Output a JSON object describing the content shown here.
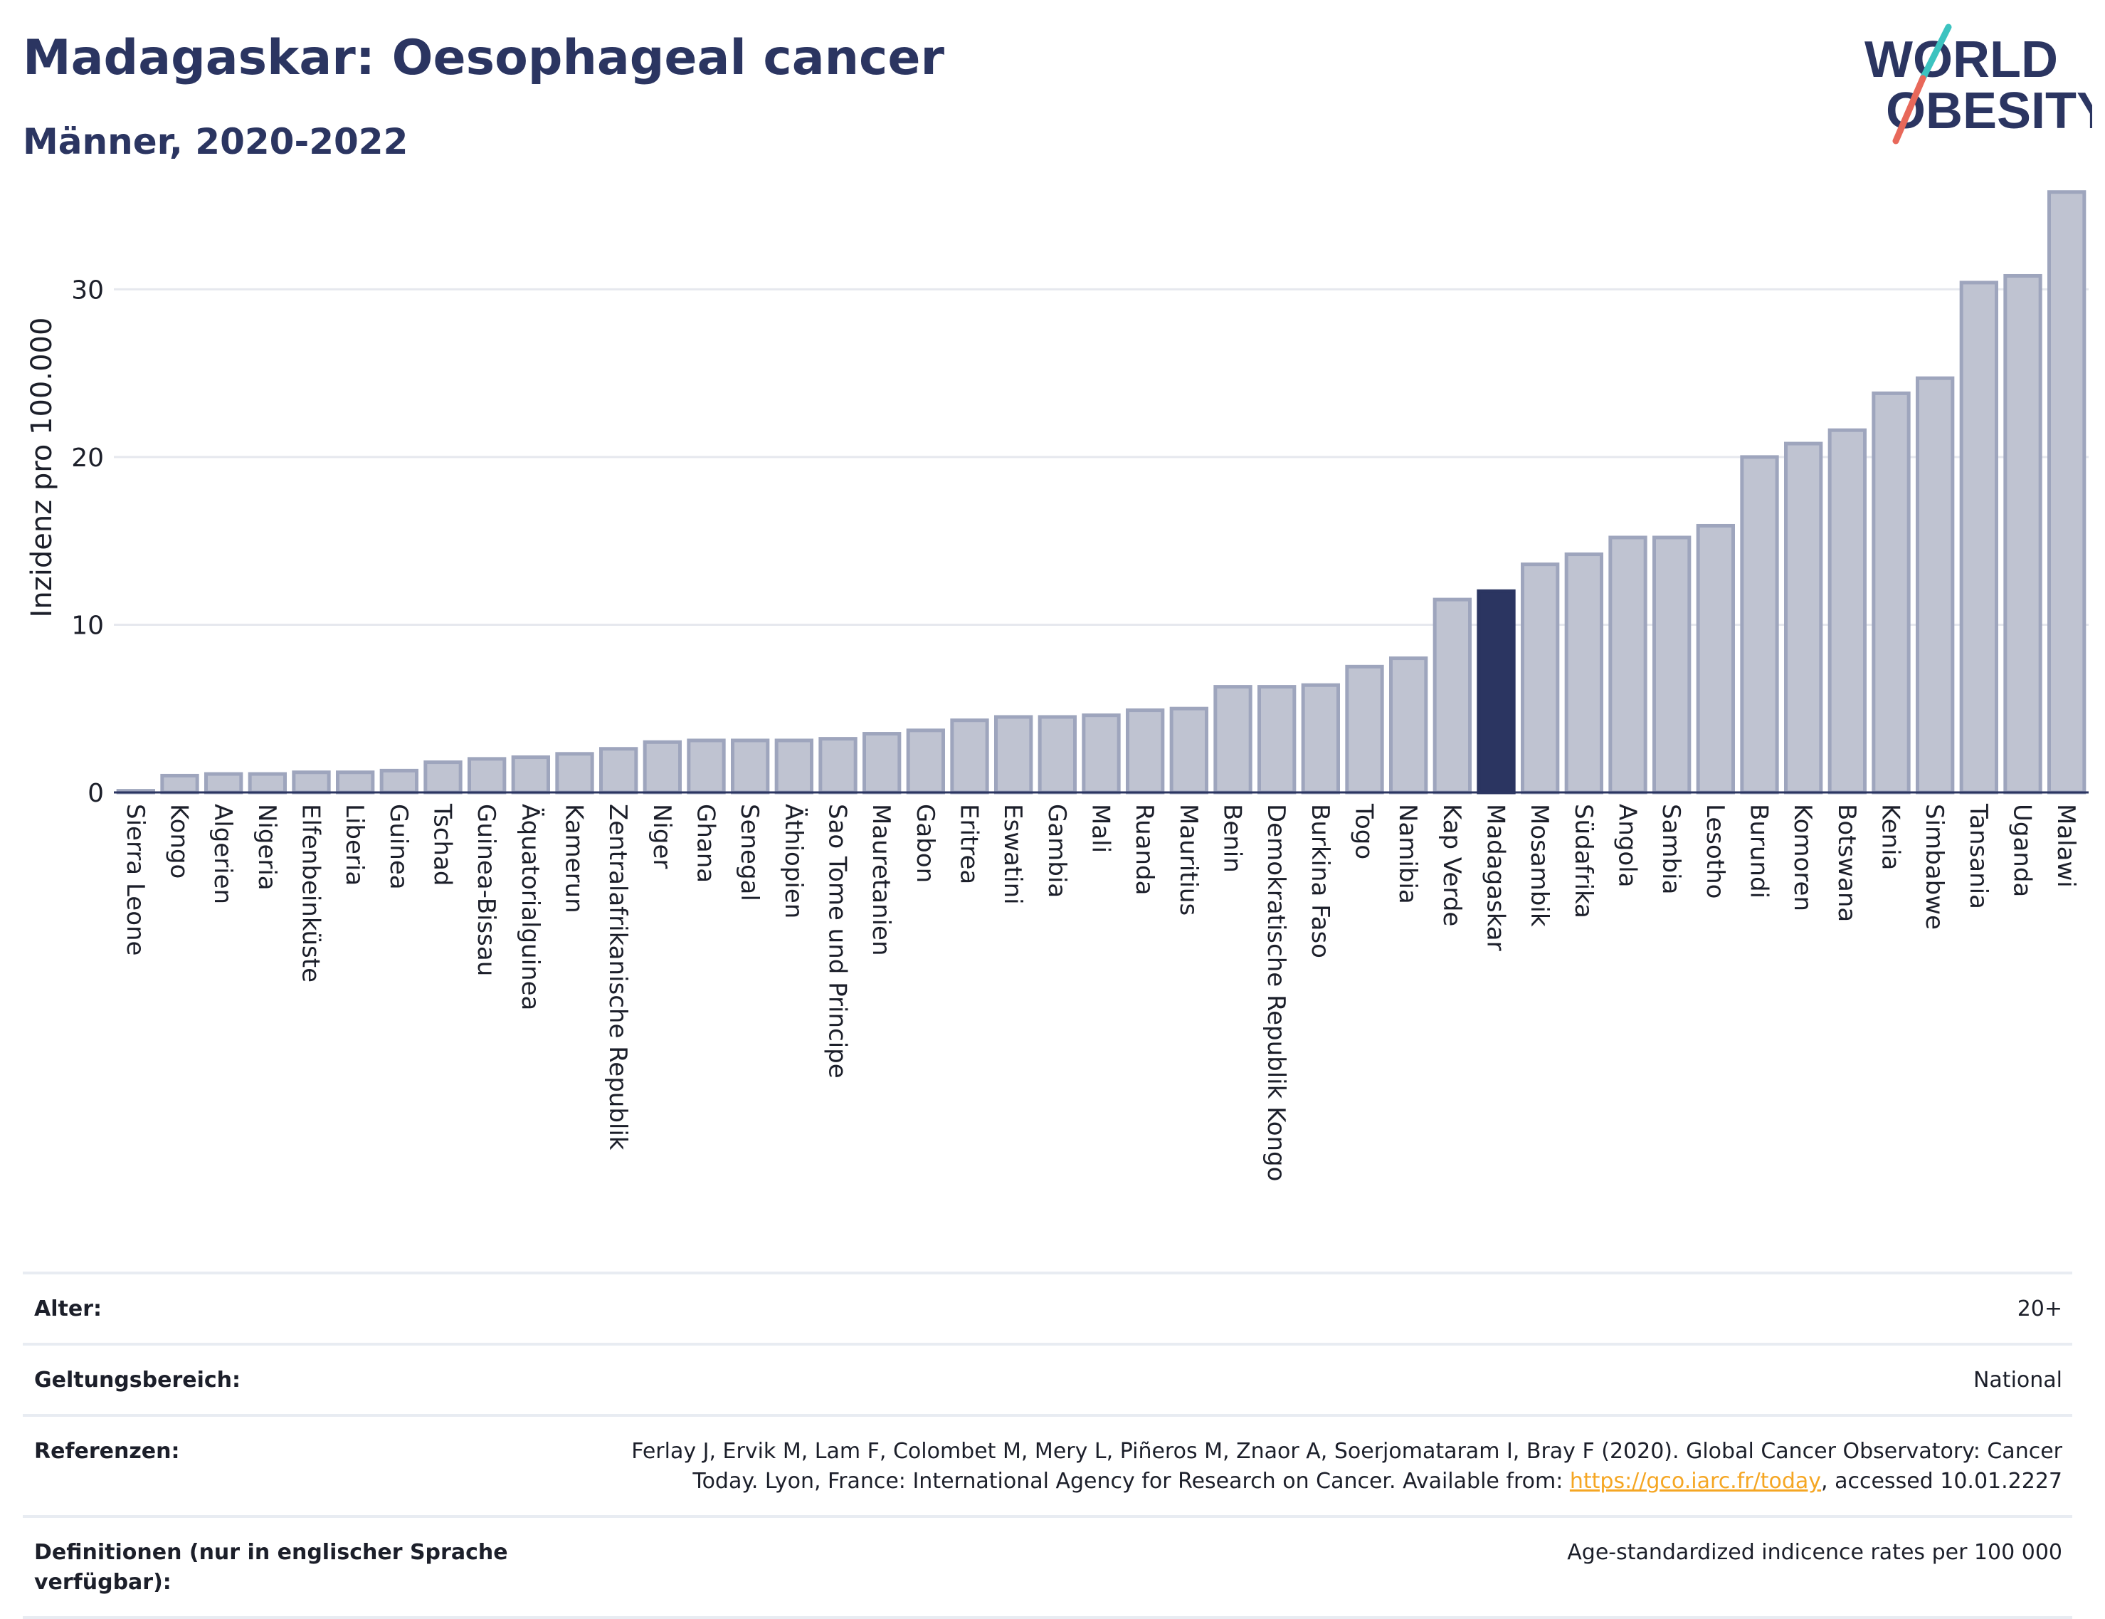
{
  "header": {
    "title": "Madagaskar: Oesophageal cancer",
    "subtitle": "Männer, 2020-2022"
  },
  "logo": {
    "line1": "WORLD",
    "line2": "OBESITY",
    "slash_colors": [
      "#3cc3c0",
      "#e8685a"
    ]
  },
  "colors": {
    "bar_fill": "#bfc3d1",
    "bar_stroke": "#9ea5bd",
    "highlight": "#2b3561",
    "grid": "#e6e8ee",
    "axis": "#2b3561"
  },
  "chart_data": {
    "type": "bar",
    "ylabel": "Inzidenz pro 100.000",
    "ylim": [
      0,
      36
    ],
    "yticks": [
      0,
      10,
      20,
      30
    ],
    "highlight": "Madagaskar",
    "grid": true,
    "categories": [
      "Sierra Leone",
      "Kongo",
      "Algerien",
      "Nigeria",
      "Elfenbeinküste",
      "Liberia",
      "Guinea",
      "Tschad",
      "Guinea-Bissau",
      "Äquatorialguinea",
      "Kamerun",
      "Zentralafrikanische Republik",
      "Niger",
      "Ghana",
      "Senegal",
      "Äthiopien",
      "Sao Tome und Principe",
      "Mauretanien",
      "Gabon",
      "Eritrea",
      "Eswatini",
      "Gambia",
      "Mali",
      "Ruanda",
      "Mauritius",
      "Benin",
      "Demokratische Republik Kongo",
      "Burkina Faso",
      "Togo",
      "Namibia",
      "Kap Verde",
      "Madagaskar",
      "Mosambik",
      "Südafrika",
      "Angola",
      "Sambia",
      "Lesotho",
      "Burundi",
      "Komoren",
      "Botswana",
      "Kenia",
      "Simbabwe",
      "Tansania",
      "Uganda",
      "Malawi"
    ],
    "values": [
      0.1,
      1.0,
      1.1,
      1.1,
      1.2,
      1.2,
      1.3,
      1.8,
      2.0,
      2.1,
      2.3,
      2.6,
      3.0,
      3.1,
      3.1,
      3.1,
      3.2,
      3.5,
      3.7,
      4.3,
      4.5,
      4.5,
      4.6,
      4.9,
      5.0,
      6.3,
      6.3,
      6.4,
      7.5,
      8.0,
      11.5,
      12.0,
      13.6,
      14.2,
      15.2,
      15.2,
      15.9,
      20.0,
      20.8,
      21.6,
      23.8,
      24.7,
      30.4,
      30.8,
      35.8
    ]
  },
  "meta": {
    "age_label": "Alter:",
    "age_value": "20+",
    "scope_label": "Geltungsbereich:",
    "scope_value": "National",
    "ref_label": "Referenzen:",
    "ref_text_1": "Ferlay J, Ervik M, Lam F, Colombet M, Mery L, Piñeros M, Znaor A, Soerjomataram I, Bray F (2020). Global Cancer Observatory: Cancer Today. Lyon, France: International Agency for Research on Cancer. Available from: ",
    "ref_link": "https://gco.iarc.fr/today",
    "ref_text_2": ", accessed 10.01.2227",
    "def_label": "Definitionen (nur in englischer Sprache verfügbar):",
    "def_value": "Age-standardized indicence rates per 100 000"
  }
}
